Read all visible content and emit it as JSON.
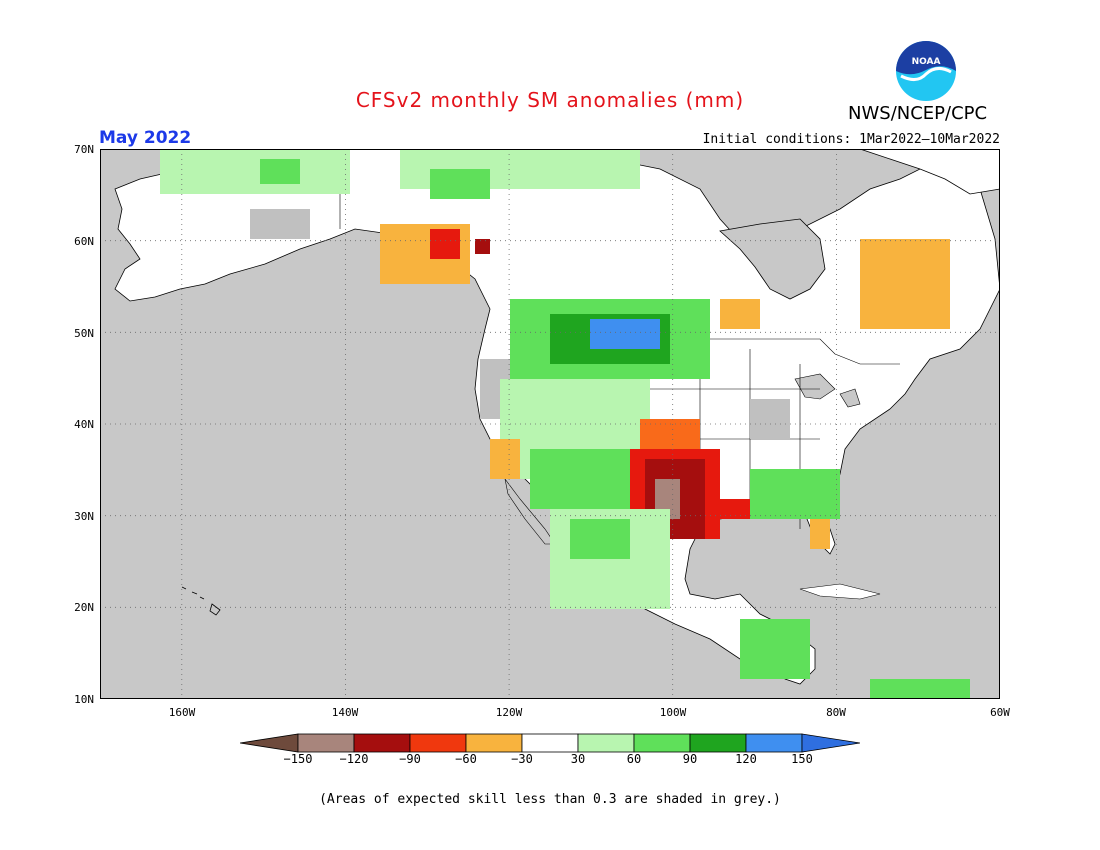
{
  "title": "CFSv2 monthly SM anomalies (mm)",
  "agency": "NWS/NCEP/CPC",
  "logo_text": "NOAA",
  "valid_period": "May 2022",
  "initial_conditions": "Initial conditions: 1Mar2022–10Mar2022",
  "footnote": "(Areas of expected skill less than 0.3 are shaded in grey.)",
  "map": {
    "lon_range": [
      -170,
      -60
    ],
    "lat_range": [
      10,
      70
    ],
    "lat_labels": [
      "70N",
      "60N",
      "50N",
      "40N",
      "30N",
      "20N",
      "10N"
    ],
    "lon_labels": [
      "160W",
      "140W",
      "120W",
      "100W",
      "80W",
      "60W"
    ],
    "ocean_color": "#c8c8c8",
    "land_color": "#ffffff",
    "low_skill_color": "#c0c0c0"
  },
  "colorbar": {
    "labels": [
      "−150",
      "−120",
      "−90",
      "−60",
      "−30",
      "30",
      "60",
      "90",
      "120",
      "150"
    ],
    "colors": [
      "#6e4a3c",
      "#a8857c",
      "#a50e0e",
      "#e6190e",
      "#f96a1a",
      "#f8b33e",
      "#ffffff",
      "#b8f5b0",
      "#5fe05a",
      "#1fa51f",
      "#3f8ff0",
      "#3f8ff0"
    ]
  },
  "regions": [
    {
      "name": "southern-plains-dry",
      "color": "#e6190e"
    },
    {
      "name": "texas-very-dry",
      "color": "#a50e0e"
    },
    {
      "name": "west-texas-extreme-dry",
      "color": "#a8857c"
    },
    {
      "name": "kansas-dry",
      "color": "#f96a1a"
    },
    {
      "name": "quebec-dry",
      "color": "#f8b33e"
    },
    {
      "name": "northern-plains-wet",
      "color": "#1fa51f"
    },
    {
      "name": "montana-very-wet",
      "color": "#3f8ff0"
    },
    {
      "name": "alaska-north-wet",
      "color": "#5fe05a"
    },
    {
      "name": "canadian-prairies-dry",
      "color": "#f8b33e"
    },
    {
      "name": "southeast-wet",
      "color": "#5fe05a"
    },
    {
      "name": "mexico-wet",
      "color": "#5fe05a"
    },
    {
      "name": "central-america-wet",
      "color": "#5fe05a"
    }
  ]
}
